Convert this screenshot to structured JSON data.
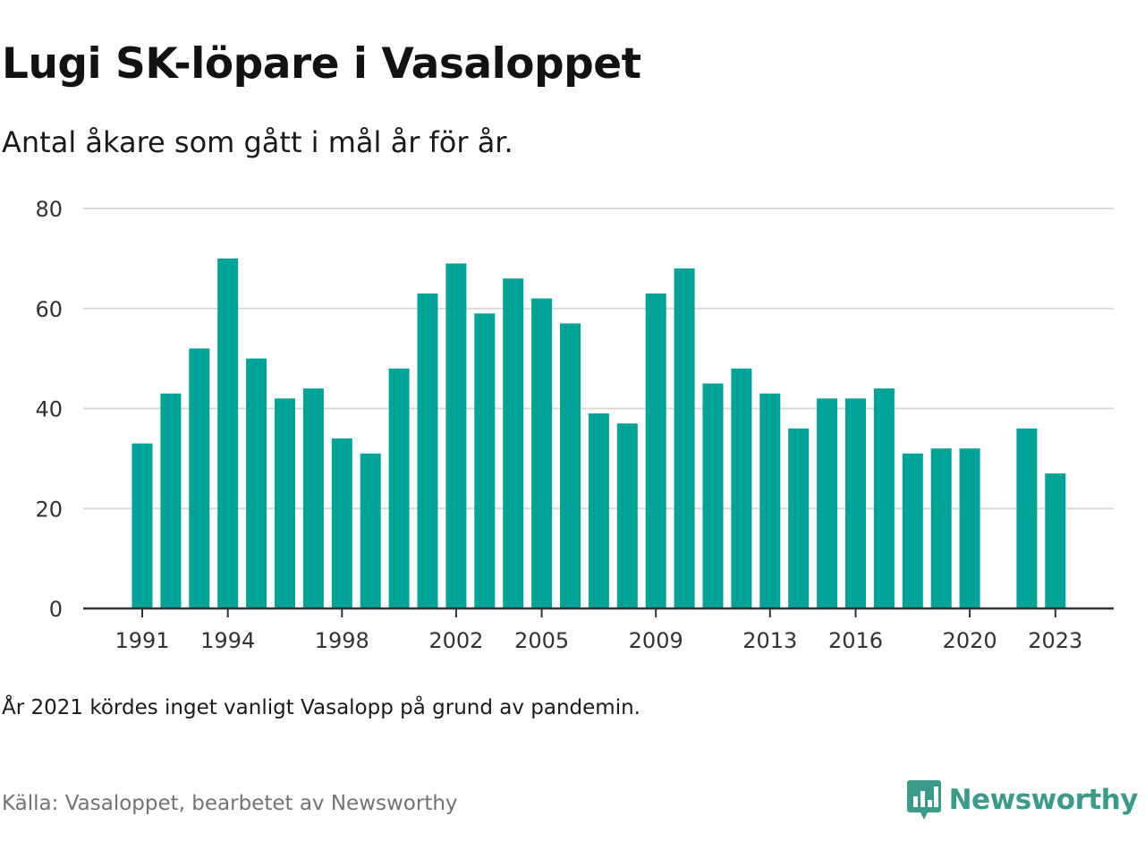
{
  "title": "Lugi SK-löpare i Vasaloppet",
  "subtitle": "Antal åkare som gått i mål år för år.",
  "note": "År 2021 kördes inget vanligt Vasalopp på grund av pandemin.",
  "source": "Källa: Vasaloppet, bearbetet av Newsworthy",
  "brand": {
    "name": "Newsworthy",
    "icon": "newsworthy-logo-icon",
    "color": "#3a9b8a"
  },
  "chart_data": {
    "type": "bar",
    "title": "Lugi SK-löpare i Vasaloppet",
    "subtitle": "Antal åkare som gått i mål år för år.",
    "xlabel": "",
    "ylabel": "",
    "ylim": [
      0,
      80
    ],
    "yticks": [
      0,
      20,
      40,
      60,
      80
    ],
    "xticks": [
      1991,
      1994,
      1998,
      2002,
      2005,
      2009,
      2013,
      2016,
      2020,
      2023
    ],
    "grid": true,
    "bar_color": "#00a398",
    "categories": [
      1991,
      1992,
      1993,
      1994,
      1995,
      1996,
      1997,
      1998,
      1999,
      2000,
      2001,
      2002,
      2003,
      2004,
      2005,
      2006,
      2007,
      2008,
      2009,
      2010,
      2011,
      2012,
      2013,
      2014,
      2015,
      2016,
      2017,
      2018,
      2019,
      2020,
      2021,
      2022,
      2023
    ],
    "values": [
      33,
      43,
      52,
      70,
      50,
      42,
      44,
      34,
      31,
      48,
      63,
      69,
      59,
      66,
      62,
      57,
      39,
      37,
      63,
      68,
      45,
      48,
      43,
      36,
      42,
      42,
      44,
      31,
      32,
      32,
      null,
      36,
      27
    ]
  }
}
